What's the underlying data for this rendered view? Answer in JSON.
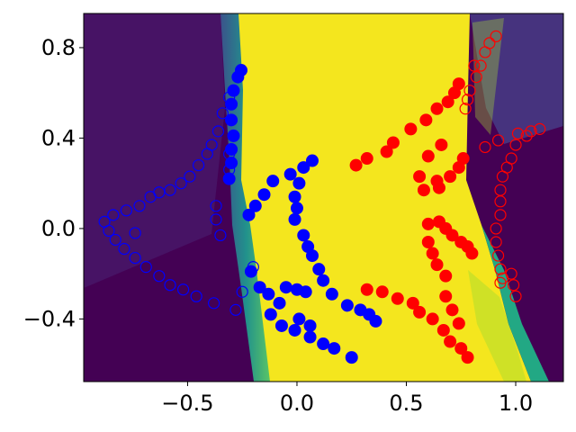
{
  "chart_data": {
    "type": "scatter",
    "xlim": [
      -0.975,
      1.218
    ],
    "ylim": [
      -0.677,
      0.951
    ],
    "xticks": [
      {
        "value": -0.5,
        "label": "−0.5"
      },
      {
        "value": 0,
        "label": "0.0"
      },
      {
        "value": 0.5,
        "label": "0.5"
      },
      {
        "value": 1.0,
        "label": "1.0"
      }
    ],
    "yticks": [
      {
        "value": -0.4,
        "label": "−0.4"
      },
      {
        "value": 0,
        "label": "0.0"
      },
      {
        "value": 0.4,
        "label": "0.4"
      },
      {
        "value": 0.8,
        "label": "0.8"
      }
    ],
    "grid": false,
    "series": [
      {
        "color": "#0000ff",
        "filled": true,
        "x": [
          -0.255,
          -0.27,
          -0.29,
          -0.3,
          -0.3,
          -0.29,
          -0.3,
          -0.3,
          -0.31,
          -0.22,
          -0.19,
          -0.15,
          -0.11,
          -0.03,
          0.03,
          0.07,
          -0.01,
          0.0,
          -0.01,
          0.01,
          0.03,
          0.05,
          0.07,
          0.1,
          0.12,
          0.16,
          0.23,
          0.29,
          0.33,
          0.36,
          -0.21,
          -0.17,
          -0.13,
          -0.08,
          -0.05,
          0.0,
          0.04,
          -0.12,
          -0.07,
          -0.01,
          0.06,
          0.12,
          0.17,
          0.25,
          0.01,
          0.06
        ],
        "y": [
          0.7,
          0.67,
          0.61,
          0.55,
          0.48,
          0.41,
          0.35,
          0.29,
          0.22,
          0.06,
          0.1,
          0.15,
          0.21,
          0.24,
          0.27,
          0.3,
          0.04,
          0.09,
          0.14,
          0.2,
          -0.03,
          -0.08,
          -0.12,
          -0.18,
          -0.23,
          -0.29,
          -0.34,
          -0.36,
          -0.38,
          -0.41,
          -0.19,
          -0.26,
          -0.29,
          -0.33,
          -0.26,
          -0.27,
          -0.28,
          -0.38,
          -0.43,
          -0.45,
          -0.48,
          -0.51,
          -0.53,
          -0.57,
          -0.4,
          -0.43
        ]
      },
      {
        "color": "#0000ff",
        "filled": false,
        "x": [
          -0.31,
          -0.34,
          -0.36,
          -0.39,
          -0.41,
          -0.45,
          -0.49,
          -0.53,
          -0.58,
          -0.63,
          -0.67,
          -0.72,
          -0.78,
          -0.84,
          -0.88,
          -0.86,
          -0.83,
          -0.79,
          -0.74,
          -0.69,
          -0.63,
          -0.58,
          -0.52,
          -0.46,
          -0.38,
          -0.28,
          -0.74,
          -0.37,
          -0.37,
          -0.35,
          -0.31,
          -0.31,
          -0.2,
          -0.25
        ],
        "y": [
          0.58,
          0.51,
          0.43,
          0.37,
          0.33,
          0.28,
          0.23,
          0.2,
          0.17,
          0.16,
          0.14,
          0.1,
          0.08,
          0.06,
          0.03,
          -0.01,
          -0.05,
          -0.09,
          -0.13,
          -0.17,
          -0.21,
          -0.25,
          -0.27,
          -0.3,
          -0.33,
          -0.36,
          -0.02,
          0.1,
          0.04,
          -0.03,
          0.33,
          0.26,
          -0.17,
          -0.28
        ]
      },
      {
        "color": "#ff0000",
        "filled": true,
        "x": [
          0.27,
          0.32,
          0.41,
          0.44,
          0.52,
          0.59,
          0.64,
          0.69,
          0.72,
          0.74,
          0.56,
          0.58,
          0.64,
          0.65,
          0.7,
          0.74,
          0.76,
          0.66,
          0.6,
          0.32,
          0.39,
          0.46,
          0.53,
          0.56,
          0.62,
          0.67,
          0.7,
          0.75,
          0.78,
          0.6,
          0.65,
          0.68,
          0.71,
          0.75,
          0.78,
          0.8,
          0.6,
          0.62,
          0.64,
          0.68,
          0.68,
          0.71,
          0.74
        ],
        "y": [
          0.28,
          0.31,
          0.34,
          0.38,
          0.44,
          0.48,
          0.53,
          0.56,
          0.6,
          0.64,
          0.23,
          0.17,
          0.21,
          0.18,
          0.23,
          0.27,
          0.31,
          0.37,
          0.32,
          -0.27,
          -0.28,
          -0.31,
          -0.33,
          -0.37,
          -0.4,
          -0.45,
          -0.5,
          -0.53,
          -0.57,
          0.02,
          0.03,
          0.0,
          -0.03,
          -0.06,
          -0.08,
          -0.11,
          -0.06,
          -0.11,
          -0.16,
          -0.21,
          -0.3,
          -0.36,
          -0.42
        ]
      },
      {
        "color": "#ff0000",
        "filled": false,
        "x": [
          0.91,
          0.88,
          0.86,
          0.81,
          0.84,
          0.82,
          0.79,
          0.78,
          0.77,
          0.86,
          0.92,
          1.01,
          1.05,
          1.07,
          1.11,
          1.0,
          0.98,
          0.96,
          0.94,
          0.93,
          0.93,
          0.93,
          0.91,
          0.91,
          0.92,
          0.93,
          0.94,
          0.98,
          0.99,
          1.0,
          0.93
        ],
        "y": [
          0.85,
          0.82,
          0.78,
          0.72,
          0.72,
          0.67,
          0.61,
          0.57,
          0.53,
          0.36,
          0.39,
          0.42,
          0.41,
          0.43,
          0.44,
          0.37,
          0.31,
          0.27,
          0.23,
          0.17,
          0.12,
          0.06,
          0.0,
          -0.06,
          -0.12,
          -0.18,
          -0.22,
          -0.2,
          -0.25,
          -0.3,
          -0.24
        ]
      }
    ]
  }
}
